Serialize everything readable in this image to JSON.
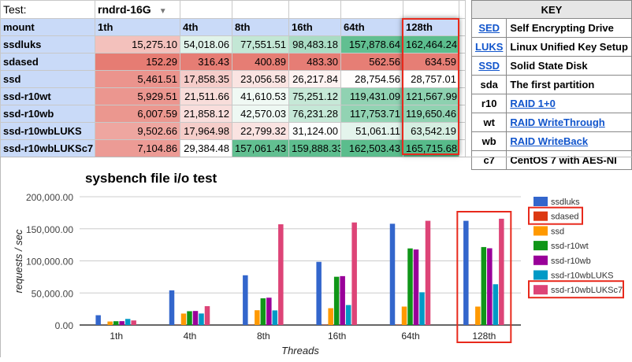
{
  "sheet": {
    "test_label": "Test:",
    "test_value": "rndrd-16G",
    "header": [
      "mount",
      "1th",
      "4th",
      "8th",
      "16th",
      "64th",
      "128th"
    ],
    "rows": [
      {
        "mount": "ssdluks",
        "values": [
          "15,275.10",
          "54,018.06",
          "77,551.51",
          "98,483.18",
          "157,878.64",
          "162,464.24"
        ]
      },
      {
        "mount": "sdased",
        "values": [
          "152.29",
          "316.43",
          "400.89",
          "483.30",
          "562.56",
          "634.59"
        ]
      },
      {
        "mount": "ssd",
        "values": [
          "5,461.51",
          "17,858.35",
          "23,056.58",
          "26,217.84",
          "28,754.56",
          "28,757.01"
        ]
      },
      {
        "mount": "ssd-r10wt",
        "values": [
          "5,929.51",
          "21,511.66",
          "41,610.53",
          "75,251.12",
          "119,431.09",
          "121,567.99"
        ]
      },
      {
        "mount": "ssd-r10wb",
        "values": [
          "6,007.59",
          "21,858.12",
          "42,570.03",
          "76,231.28",
          "117,753.71",
          "119,650.46"
        ]
      },
      {
        "mount": "ssd-r10wbLUKS",
        "values": [
          "9,502.66",
          "17,964.98",
          "22,799.32",
          "31,124.00",
          "51,061.11",
          "63,542.19"
        ]
      },
      {
        "mount": "ssd-r10wbLUKSc7",
        "values": [
          "7,104.86",
          "29,384.48",
          "157,061.43",
          "159,888.33",
          "162,503.43",
          "165,715.68"
        ]
      }
    ],
    "scale_colors": {
      "low": "#e67c73",
      "mid": "#ffffff",
      "high": "#57bb8a"
    }
  },
  "key": {
    "title": "KEY",
    "items": [
      {
        "abbr": "SED",
        "desc": "Self Encrypting Drive",
        "abbr_link": true,
        "desc_link": false
      },
      {
        "abbr": "LUKS",
        "desc": "Linux Unified Key Setup",
        "abbr_link": true,
        "desc_link": false
      },
      {
        "abbr": "SSD",
        "desc": "Solid State Disk",
        "abbr_link": true,
        "desc_link": false
      },
      {
        "abbr": "sda",
        "desc": "The first partition",
        "abbr_link": false,
        "desc_link": false
      },
      {
        "abbr": "r10",
        "desc": "RAID 1+0",
        "abbr_link": false,
        "desc_link": true
      },
      {
        "abbr": "wt",
        "desc": "RAID WriteThrough",
        "abbr_link": false,
        "desc_link": true
      },
      {
        "abbr": "wb",
        "desc": "RAID WriteBack",
        "abbr_link": false,
        "desc_link": true
      },
      {
        "abbr": "c7",
        "desc": "CentOS 7 with AES-NI",
        "abbr_link": false,
        "desc_link": false
      }
    ]
  },
  "chart_data": {
    "type": "bar",
    "title": "sysbench file i/o test",
    "xlabel": "Threads",
    "ylabel": "requests / sec",
    "ylim": [
      0,
      200000
    ],
    "yticks": [
      "0.00",
      "50,000.00",
      "100,000.00",
      "150,000.00",
      "200,000.00"
    ],
    "grid": true,
    "legend": "right",
    "categories": [
      "1th",
      "4th",
      "8th",
      "16th",
      "64th",
      "128th"
    ],
    "series": [
      {
        "name": "ssdluks",
        "color": "#3366cc",
        "values": [
          15275.1,
          54018.06,
          77551.51,
          98483.18,
          157878.64,
          162464.24
        ]
      },
      {
        "name": "sdased",
        "color": "#dc3912",
        "values": [
          152.29,
          316.43,
          400.89,
          483.3,
          562.56,
          634.59
        ]
      },
      {
        "name": "ssd",
        "color": "#ff9900",
        "values": [
          5461.51,
          17858.35,
          23056.58,
          26217.84,
          28754.56,
          28757.01
        ]
      },
      {
        "name": "ssd-r10wt",
        "color": "#109618",
        "values": [
          5929.51,
          21511.66,
          41610.53,
          75251.12,
          119431.09,
          121567.99
        ]
      },
      {
        "name": "ssd-r10wb",
        "color": "#990099",
        "values": [
          6007.59,
          21858.12,
          42570.03,
          76231.28,
          117753.71,
          119650.46
        ]
      },
      {
        "name": "ssd-r10wbLUKS",
        "color": "#0099c6",
        "values": [
          9502.66,
          17964.98,
          22799.32,
          31124.0,
          51061.11,
          63542.19
        ]
      },
      {
        "name": "ssd-r10wbLUKSc7",
        "color": "#dd4477",
        "values": [
          7104.86,
          29384.48,
          157061.43,
          159888.33,
          162503.43,
          165715.68
        ]
      }
    ],
    "highlight": {
      "category": "128th",
      "legend": [
        "sdased",
        "ssd-r10wbLUKSc7"
      ],
      "color": "#e8291c"
    }
  }
}
